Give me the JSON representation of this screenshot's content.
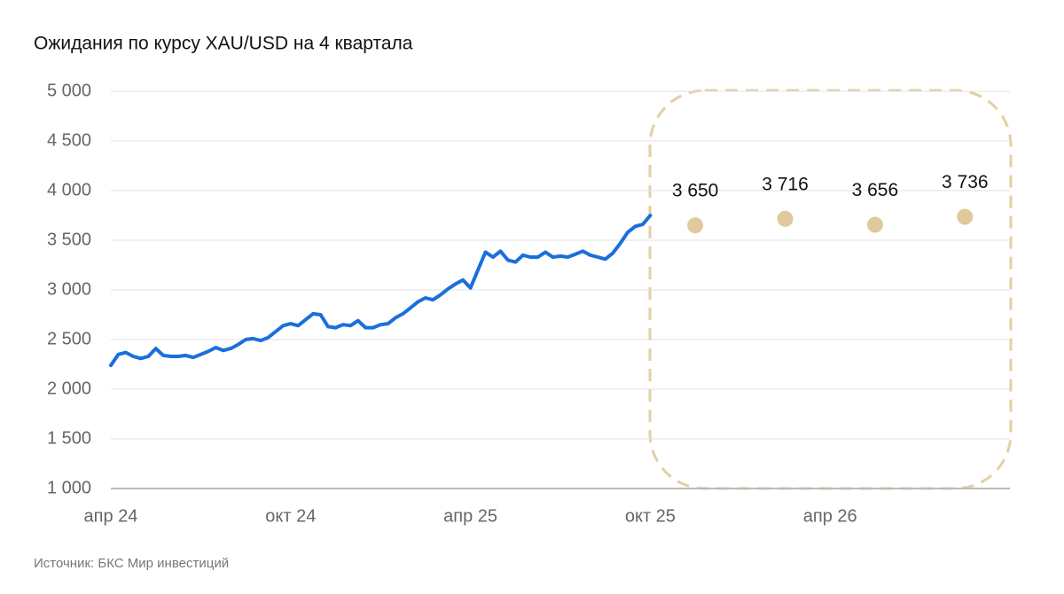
{
  "chart_data": {
    "type": "line",
    "title": "Ожидания по курсу XAU/USD на 4 квартала",
    "source": "Источник: БКС Мир инвестиций",
    "categories": [
      "апр 24",
      null,
      null,
      null,
      null,
      null,
      null,
      null,
      null,
      null,
      null,
      null,
      null,
      null,
      null,
      null,
      null,
      null,
      null,
      null,
      null,
      null,
      null,
      null,
      "окт 24",
      null,
      null,
      null,
      null,
      null,
      null,
      null,
      null,
      null,
      null,
      null,
      null,
      null,
      null,
      null,
      null,
      null,
      null,
      null,
      null,
      null,
      null,
      null,
      "апр 25",
      null,
      null,
      null,
      null,
      null,
      null,
      null,
      null,
      null,
      null,
      null,
      null,
      null,
      null,
      null,
      null,
      null,
      null,
      null,
      null,
      null,
      null,
      null,
      "окт 25",
      null,
      null,
      null,
      null,
      null,
      null,
      null,
      null,
      null,
      null,
      null,
      null,
      null,
      null,
      null,
      null,
      null,
      null,
      null,
      null,
      null,
      null,
      null,
      "апр 26",
      null,
      null,
      null,
      null,
      null,
      null,
      null,
      null,
      null,
      null,
      null,
      null,
      null,
      null,
      null,
      null,
      null,
      null,
      null,
      null,
      null,
      null,
      null,
      null
    ],
    "series": [
      {
        "color": "#1a6fdc",
        "values": [
          2240,
          2350,
          2370,
          2330,
          2310,
          2330,
          2410,
          2340,
          2330,
          2330,
          2340,
          2320,
          2350,
          2380,
          2420,
          2390,
          2410,
          2450,
          2500,
          2510,
          2490,
          2520,
          2580,
          2640,
          2660,
          2640,
          2700,
          2760,
          2750,
          2630,
          2620,
          2650,
          2640,
          2690,
          2620,
          2620,
          2650,
          2660,
          2720,
          2760,
          2820,
          2880,
          2920,
          2900,
          2950,
          3010,
          3060,
          3100,
          3020,
          3200,
          3380,
          3330,
          3390,
          3300,
          3280,
          3350,
          3330,
          3330,
          3380,
          3330,
          3340,
          3330,
          3360,
          3390,
          3350,
          3330,
          3310,
          3370,
          3470,
          3580,
          3640,
          3660,
          3750,
          null,
          null,
          null,
          null,
          null,
          null,
          null,
          null,
          null,
          null,
          null,
          null,
          null,
          null,
          null,
          null,
          null,
          null,
          null,
          null,
          null,
          null,
          null,
          null,
          null,
          null,
          null,
          null,
          null,
          null,
          null,
          null,
          null,
          null,
          null,
          null,
          null,
          null,
          null,
          null,
          null,
          null,
          null,
          null,
          null,
          null,
          null,
          null
        ]
      },
      {
        "color": "#e0c99a",
        "marker": "dot",
        "values": [
          null,
          null,
          null,
          null,
          null,
          null,
          null,
          null,
          null,
          null,
          null,
          null,
          null,
          null,
          null,
          null,
          null,
          null,
          null,
          null,
          null,
          null,
          null,
          null,
          null,
          null,
          null,
          null,
          null,
          null,
          null,
          null,
          null,
          null,
          null,
          null,
          null,
          null,
          null,
          null,
          null,
          null,
          null,
          null,
          null,
          null,
          null,
          null,
          null,
          null,
          null,
          null,
          null,
          null,
          null,
          null,
          null,
          null,
          null,
          null,
          null,
          null,
          null,
          null,
          null,
          null,
          null,
          null,
          null,
          null,
          null,
          null,
          null,
          null,
          null,
          null,
          null,
          null,
          3650,
          null,
          null,
          null,
          null,
          null,
          null,
          null,
          null,
          null,
          null,
          null,
          3716,
          null,
          null,
          null,
          null,
          null,
          null,
          null,
          null,
          null,
          null,
          null,
          3656,
          null,
          null,
          null,
          null,
          null,
          null,
          null,
          null,
          null,
          null,
          null,
          3736,
          null,
          null,
          null,
          null,
          null,
          null
        ],
        "value_labels": [
          null,
          null,
          null,
          null,
          null,
          null,
          null,
          null,
          null,
          null,
          null,
          null,
          null,
          null,
          null,
          null,
          null,
          null,
          null,
          null,
          null,
          null,
          null,
          null,
          null,
          null,
          null,
          null,
          null,
          null,
          null,
          null,
          null,
          null,
          null,
          null,
          null,
          null,
          null,
          null,
          null,
          null,
          null,
          null,
          null,
          null,
          null,
          null,
          null,
          null,
          null,
          null,
          null,
          null,
          null,
          null,
          null,
          null,
          null,
          null,
          null,
          null,
          null,
          null,
          null,
          null,
          null,
          null,
          null,
          null,
          null,
          null,
          null,
          null,
          null,
          null,
          null,
          null,
          "3 650",
          null,
          null,
          null,
          null,
          null,
          null,
          null,
          null,
          null,
          null,
          null,
          "3 716",
          null,
          null,
          null,
          null,
          null,
          null,
          null,
          null,
          null,
          null,
          null,
          "3 656",
          null,
          null,
          null,
          null,
          null,
          null,
          null,
          null,
          null,
          null,
          null,
          "3 736",
          null,
          null,
          null,
          null,
          null,
          null
        ]
      }
    ],
    "ylim": [
      1000,
      5000
    ],
    "yticks": [
      {
        "value": 1000,
        "label": "1 000"
      },
      {
        "value": 1500,
        "label": "1 500"
      },
      {
        "value": 2000,
        "label": "2 000"
      },
      {
        "value": 2500,
        "label": "2 500"
      },
      {
        "value": 3000,
        "label": "3 000"
      },
      {
        "value": 3500,
        "label": "3 500"
      },
      {
        "value": 4000,
        "label": "4 000"
      },
      {
        "value": 4500,
        "label": "4 500"
      },
      {
        "value": 5000,
        "label": "5 000"
      }
    ],
    "grid": true
  }
}
